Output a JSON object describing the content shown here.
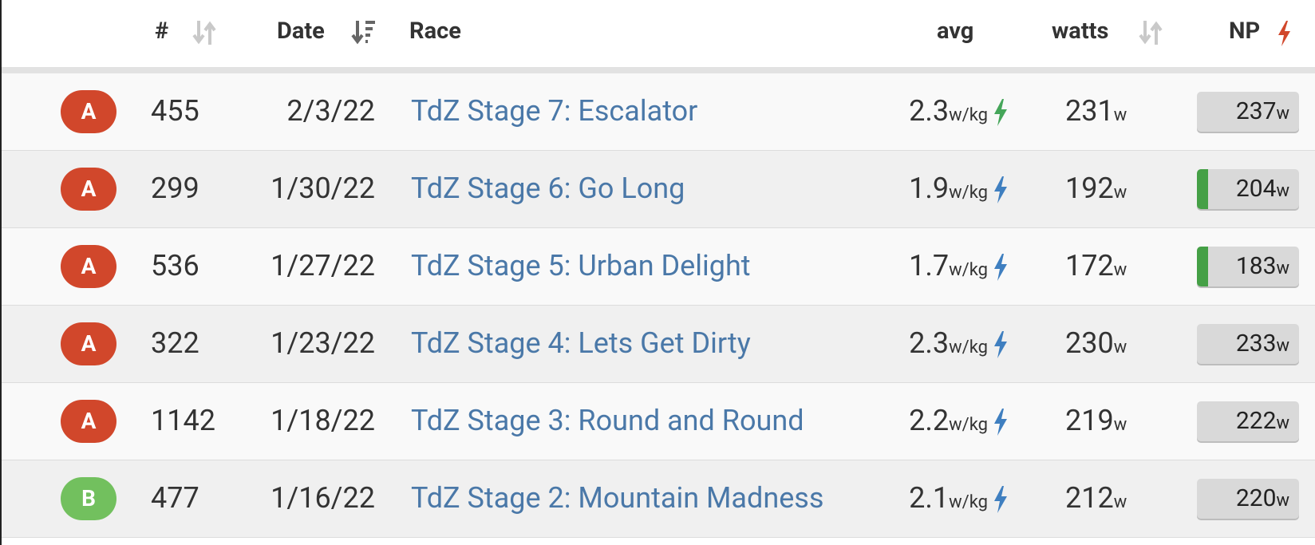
{
  "header": {
    "num": "#",
    "date": "Date",
    "race": "Race",
    "avg": "avg",
    "watts": "watts",
    "np": "NP"
  },
  "units": {
    "avg": "w/kg",
    "watts": "w",
    "np": "w"
  },
  "colors": {
    "A": "#d1472b",
    "B": "#72c05e",
    "green": "#45a65a",
    "blue": "#3f7fc0"
  },
  "rows": [
    {
      "cat": "A",
      "num": 455,
      "date": "2/3/22",
      "race": "TdZ Stage 7: Escalator",
      "avg": 2.3,
      "watts": 231,
      "np": 237,
      "bolt": "green",
      "np_bar": false
    },
    {
      "cat": "A",
      "num": 299,
      "date": "1/30/22",
      "race": "TdZ Stage 6: Go Long",
      "avg": 1.9,
      "watts": 192,
      "np": 204,
      "bolt": "blue",
      "np_bar": true
    },
    {
      "cat": "A",
      "num": 536,
      "date": "1/27/22",
      "race": "TdZ Stage 5: Urban Delight",
      "avg": 1.7,
      "watts": 172,
      "np": 183,
      "bolt": "blue",
      "np_bar": true
    },
    {
      "cat": "A",
      "num": 322,
      "date": "1/23/22",
      "race": "TdZ Stage 4: Lets Get Dirty",
      "avg": 2.3,
      "watts": 230,
      "np": 233,
      "bolt": "blue",
      "np_bar": false
    },
    {
      "cat": "A",
      "num": 1142,
      "date": "1/18/22",
      "race": "TdZ Stage 3: Round and Round",
      "avg": 2.2,
      "watts": 219,
      "np": 222,
      "bolt": "blue",
      "np_bar": false
    },
    {
      "cat": "B",
      "num": 477,
      "date": "1/16/22",
      "race": "TdZ Stage 2: Mountain Madness",
      "avg": 2.1,
      "watts": 212,
      "np": 220,
      "bolt": "blue",
      "np_bar": false
    }
  ]
}
